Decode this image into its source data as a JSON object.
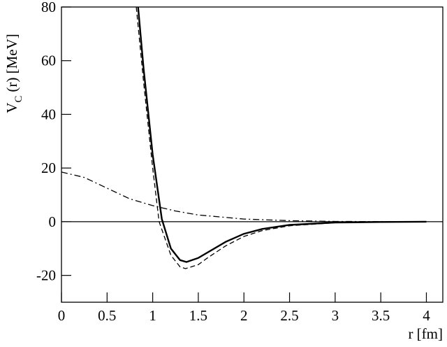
{
  "chart_data": {
    "type": "line",
    "xlabel": "r [fm]",
    "ylabel": [
      "V",
      "C",
      "(r) [MeV]"
    ],
    "xlim": [
      0,
      4.18
    ],
    "ylim": [
      -30,
      80
    ],
    "xticks": [
      0,
      0.5,
      1,
      1.5,
      2,
      2.5,
      3,
      3.5,
      4
    ],
    "yticks": [
      -20,
      0,
      20,
      40,
      60,
      80
    ],
    "hline": 0,
    "series": [
      {
        "color": "#000000",
        "style": "solid",
        "width": 2.4,
        "x": [
          0.84,
          0.9,
          1.0,
          1.1,
          1.2,
          1.3,
          1.37,
          1.5,
          1.6,
          1.8,
          2.0,
          2.2,
          2.5,
          3.0,
          3.5,
          4.0
        ],
        "values": [
          80,
          57,
          25,
          1,
          -10,
          -14.3,
          -15,
          -13.5,
          -11.5,
          -7.5,
          -4.5,
          -2.7,
          -1.2,
          -0.3,
          -0.1,
          0
        ]
      },
      {
        "color": "#000000",
        "style": "dashed",
        "width": 1.3,
        "x": [
          0.82,
          0.9,
          1.0,
          1.07,
          1.2,
          1.3,
          1.36,
          1.5,
          1.6,
          1.8,
          2.0,
          2.2,
          2.5,
          3.0,
          3.5,
          4.0
        ],
        "values": [
          80,
          52,
          20,
          0,
          -12.5,
          -16.8,
          -17.5,
          -16,
          -13.5,
          -9,
          -5.5,
          -3.3,
          -1.5,
          -0.4,
          -0.1,
          0
        ]
      },
      {
        "color": "#000000",
        "style": "dashdot",
        "width": 1.3,
        "x": [
          0,
          0.25,
          0.5,
          0.75,
          1.0,
          1.25,
          1.5,
          2.0,
          2.5,
          3.0,
          4.0
        ],
        "values": [
          18.5,
          16.5,
          12.5,
          8.5,
          6,
          4,
          2.5,
          1,
          0.4,
          0.1,
          0
        ]
      }
    ]
  }
}
